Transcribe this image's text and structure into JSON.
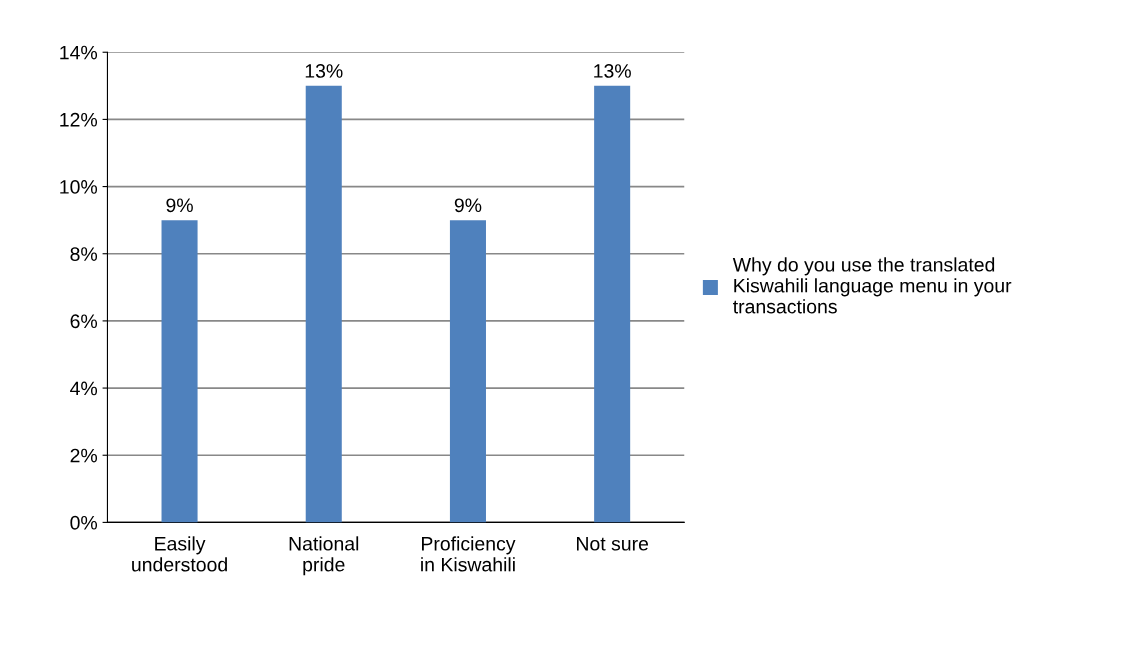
{
  "chart_data": {
    "type": "bar",
    "categories": [
      "Easily\nunderstood",
      "National\npride",
      "Proficiency\nin Kiswahili",
      "Not sure"
    ],
    "series": [
      {
        "name": "Why do you use the translated Kiswahili language menu in your transactions",
        "color": "#4f81bd",
        "values": [
          9,
          13,
          9,
          13
        ],
        "value_labels": [
          "9%",
          "13%",
          "9%",
          "13%"
        ]
      }
    ],
    "ylim": [
      0,
      14
    ],
    "yticks": [
      {
        "value": 0,
        "label": "0%"
      },
      {
        "value": 2,
        "label": "2%"
      },
      {
        "value": 4,
        "label": "4%"
      },
      {
        "value": 6,
        "label": "6%"
      },
      {
        "value": 8,
        "label": "8%"
      },
      {
        "value": 10,
        "label": "10%"
      },
      {
        "value": 12,
        "label": "12%"
      },
      {
        "value": 14,
        "label": "14%"
      }
    ],
    "grid": "y",
    "legend": "right"
  }
}
